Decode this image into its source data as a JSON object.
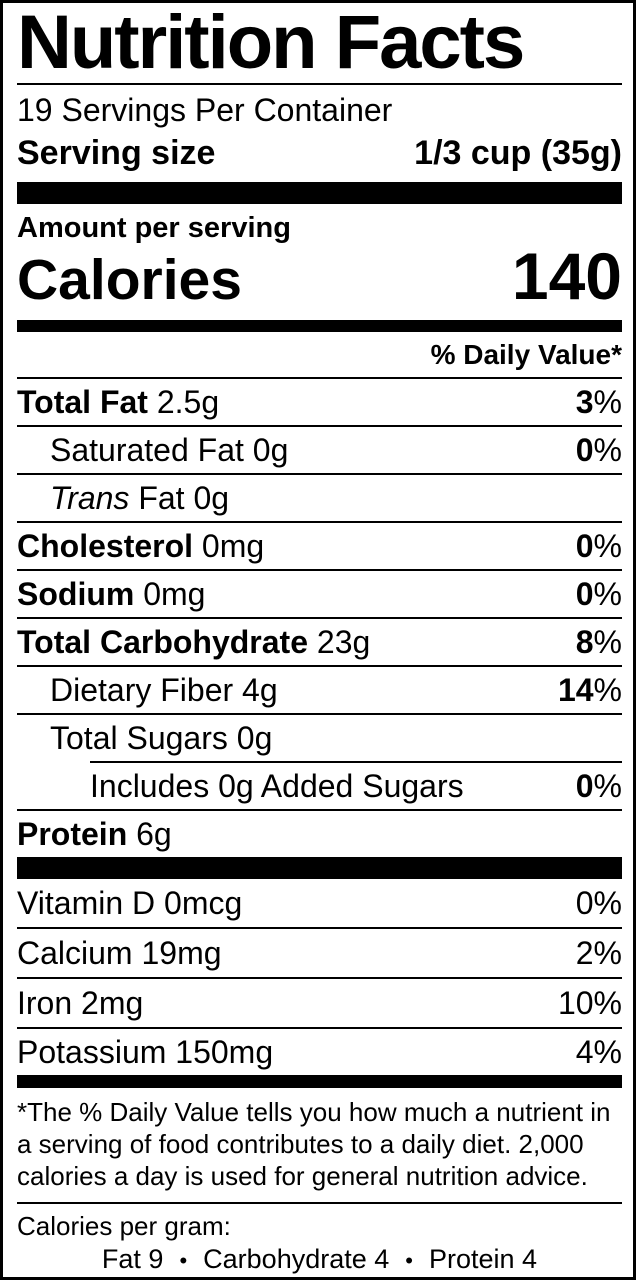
{
  "colors": {
    "ink": "#000000",
    "paper": "#ffffff"
  },
  "title": "Nutrition Facts",
  "servings_per_container": "19 Servings Per Container",
  "serving_size": {
    "label": "Serving size",
    "value": "1/3 cup (35g)"
  },
  "amount_per_serving": "Amount per serving",
  "calories": {
    "label": "Calories",
    "value": "140"
  },
  "daily_value_header": "% Daily Value*",
  "nutrients": [
    {
      "bold": "Total Fat",
      "plain": " 2.5g",
      "percent": "3",
      "percent_bold": true,
      "indent": 0,
      "rule": "full"
    },
    {
      "plain": "Saturated Fat 0g",
      "percent": "0",
      "percent_bold": true,
      "indent": 1,
      "rule": "full"
    },
    {
      "italic": "Trans",
      "plain": " Fat 0g",
      "percent": null,
      "indent": 1,
      "rule": "full"
    },
    {
      "bold": "Cholesterol",
      "plain": " 0mg",
      "percent": "0",
      "percent_bold": true,
      "indent": 0,
      "rule": "full"
    },
    {
      "bold": "Sodium",
      "plain": " 0mg",
      "percent": "0",
      "percent_bold": true,
      "indent": 0,
      "rule": "full"
    },
    {
      "bold": "Total Carbohydrate",
      "plain": " 23g",
      "percent": "8",
      "percent_bold": true,
      "indent": 0,
      "rule": "full"
    },
    {
      "plain": "Dietary Fiber 4g",
      "percent": "14",
      "percent_bold": true,
      "indent": 1,
      "rule": "full"
    },
    {
      "plain": "Total Sugars 0g",
      "percent": null,
      "indent": 1,
      "rule": "indent"
    },
    {
      "plain": "Includes 0g Added Sugars",
      "percent": "0",
      "percent_bold": true,
      "indent": 2,
      "rule": "full"
    },
    {
      "bold": "Protein",
      "plain": " 6g",
      "percent": null,
      "indent": 0,
      "rule": "none"
    }
  ],
  "vitamins": [
    {
      "plain": "Vitamin D 0mcg",
      "percent": "0",
      "rule": "full"
    },
    {
      "plain": "Calcium 19mg",
      "percent": "2",
      "rule": "full"
    },
    {
      "plain": "Iron 2mg",
      "percent": "10",
      "rule": "full"
    },
    {
      "plain": "Potassium 150mg",
      "percent": "4",
      "rule": "none"
    }
  ],
  "footnote": "*The % Daily Value tells you how much a nutrient in a serving of food contributes to a daily diet. 2,000 calories a day is used for general nutrition advice.",
  "calories_per_gram": {
    "label": "Calories per gram:",
    "items": [
      "Fat 9",
      "Carbohydrate 4",
      "Protein 4"
    ],
    "separator": "•"
  }
}
